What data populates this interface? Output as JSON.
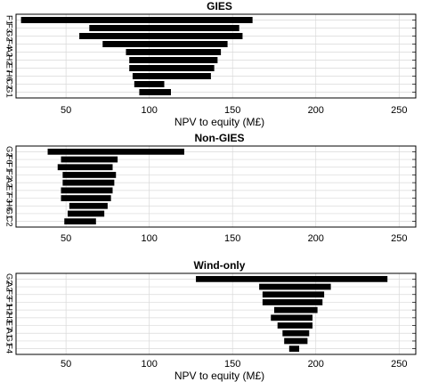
{
  "chart_data": [
    {
      "type": "bar",
      "orientation": "horizontal",
      "title": "GIES",
      "xlabel": "NPV to equity (M£)",
      "xlim": [
        20,
        260
      ],
      "xticks": [
        50,
        100,
        150,
        200,
        250
      ],
      "grid": true,
      "categories": [
        "F1",
        "F3",
        "G2",
        "F4",
        "A2",
        "H2",
        "E7",
        "H6",
        "C2",
        "G1"
      ],
      "ranges": [
        [
          23,
          162
        ],
        [
          64,
          154
        ],
        [
          58,
          156
        ],
        [
          72,
          147
        ],
        [
          86,
          143
        ],
        [
          88,
          141
        ],
        [
          88,
          139
        ],
        [
          90,
          137
        ],
        [
          91,
          109
        ],
        [
          94,
          113
        ]
      ]
    },
    {
      "type": "bar",
      "orientation": "horizontal",
      "title": "Non-GIES",
      "xlabel": "",
      "xlim": [
        20,
        260
      ],
      "xticks": [
        50,
        100,
        150,
        200,
        250
      ],
      "grid": true,
      "categories": [
        "G2",
        "F6",
        "F1",
        "F2",
        "A2",
        "E7",
        "F3",
        "H6",
        "G1",
        "C2"
      ],
      "ranges": [
        [
          39,
          121
        ],
        [
          47,
          81
        ],
        [
          45,
          78
        ],
        [
          48,
          80
        ],
        [
          48,
          79
        ],
        [
          47,
          78
        ],
        [
          47,
          77
        ],
        [
          52,
          75
        ],
        [
          51,
          73
        ],
        [
          49,
          68
        ]
      ]
    },
    {
      "type": "bar",
      "orientation": "horizontal",
      "title": "Wind-only",
      "xlabel": "NPV to equity (M£)",
      "xlim": [
        20,
        260
      ],
      "xticks": [
        50,
        100,
        150,
        200,
        250
      ],
      "grid": true,
      "categories": [
        "G2",
        "A2",
        "F3",
        "F1",
        "H2",
        "H3",
        "E7",
        "A1",
        "G1",
        "F4"
      ],
      "ranges": [
        [
          128,
          243
        ],
        [
          166,
          209
        ],
        [
          168,
          205
        ],
        [
          168,
          204
        ],
        [
          175,
          201
        ],
        [
          173,
          198
        ],
        [
          177,
          198
        ],
        [
          180,
          196
        ],
        [
          181,
          195
        ],
        [
          184,
          190
        ]
      ]
    }
  ]
}
